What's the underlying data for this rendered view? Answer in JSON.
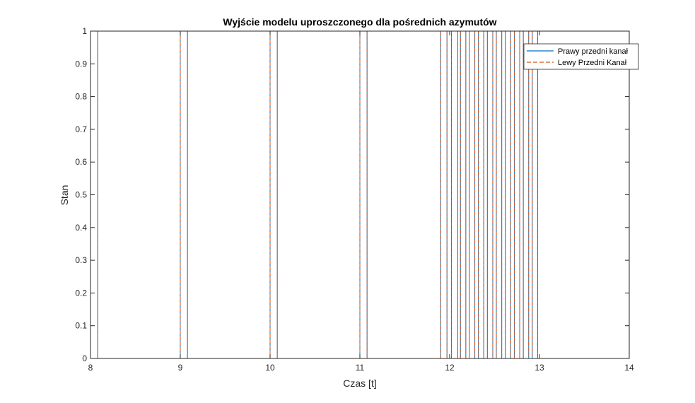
{
  "chart_data": {
    "type": "line",
    "title": "Wyjście modelu uproszczonego dla pośrednich azymutów",
    "xlabel": "Czas [t]",
    "ylabel": "Stan",
    "xlim": [
      8,
      14
    ],
    "ylim": [
      0,
      1
    ],
    "xticks": [
      "8",
      "9",
      "10",
      "11",
      "12",
      "13",
      "14"
    ],
    "yticks": [
      "0",
      "0.1",
      "0.2",
      "0.3",
      "0.4",
      "0.5",
      "0.6",
      "0.7",
      "0.8",
      "0.9",
      "1"
    ],
    "grid": false,
    "legend_position": "top-right",
    "pulses": [
      [
        8.0,
        8.08
      ],
      [
        9.0,
        9.08
      ],
      [
        10.0,
        10.08
      ],
      [
        11.0,
        11.08
      ],
      [
        11.9,
        11.97
      ],
      [
        12.02,
        12.09
      ],
      [
        12.12,
        12.18
      ],
      [
        12.22,
        12.28
      ],
      [
        12.32,
        12.38
      ],
      [
        12.42,
        12.48
      ],
      [
        12.52,
        12.58
      ],
      [
        12.62,
        12.68
      ],
      [
        12.72,
        12.78
      ],
      [
        12.82,
        12.88
      ],
      [
        12.92,
        12.98
      ]
    ],
    "x_end": 14,
    "series": [
      {
        "name": "Prawy przedni kanał",
        "color": "#0072BD",
        "style": "solid"
      },
      {
        "name": "Lewy Przedni Kanał",
        "color": "#D95319",
        "style": "dashed"
      }
    ]
  }
}
